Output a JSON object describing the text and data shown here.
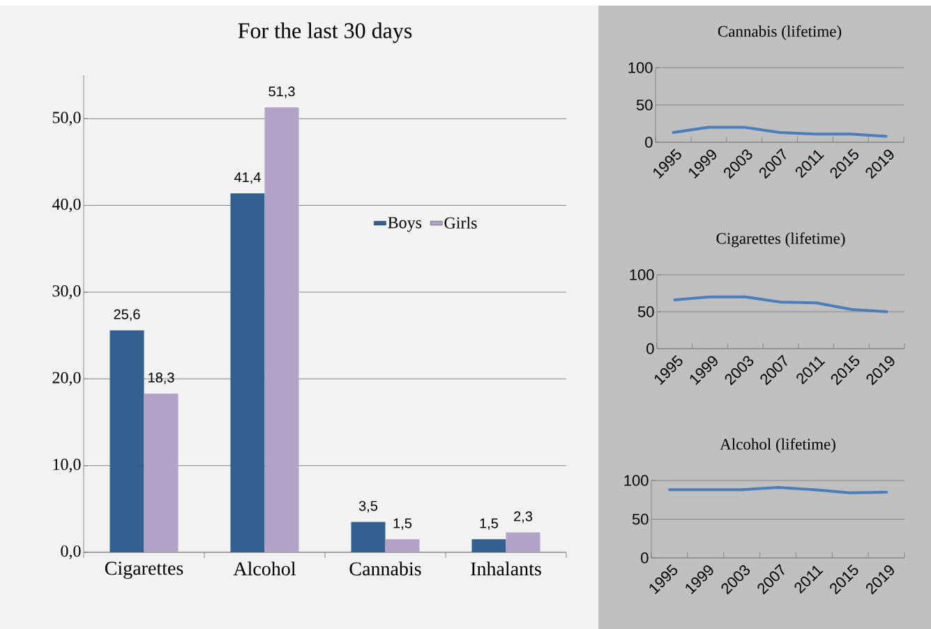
{
  "chart_data": [
    {
      "type": "bar",
      "title": "For the last 30 days",
      "categories": [
        "Cigarettes",
        "Alcohol",
        "Cannabis",
        "Inhalants"
      ],
      "series": [
        {
          "name": "Boys",
          "color": "#335f91",
          "values": [
            25.6,
            41.4,
            3.5,
            1.5
          ],
          "value_labels": [
            "25,6",
            "41,4",
            "3,5",
            "1,5"
          ]
        },
        {
          "name": "Girls",
          "color": "#b3a2c7",
          "values": [
            18.3,
            51.3,
            1.5,
            2.3
          ],
          "value_labels": [
            "18,3",
            "51,3",
            "1,5",
            "2,3"
          ]
        }
      ],
      "ylim": [
        0,
        55
      ],
      "yticks": [
        {
          "value": 0,
          "label": "0,0"
        },
        {
          "value": 10,
          "label": "10,0"
        },
        {
          "value": 20,
          "label": "20,0"
        },
        {
          "value": 30,
          "label": "30,0"
        },
        {
          "value": 40,
          "label": "40,0"
        },
        {
          "value": 50,
          "label": "50,0"
        }
      ],
      "grid": "y",
      "legend": "right"
    },
    {
      "type": "line",
      "title": "Cannabis (lifetime)",
      "categories": [
        "1995",
        "1999",
        "2003",
        "2007",
        "2011",
        "2015",
        "2019"
      ],
      "series": [
        {
          "color": "#4a7ebb",
          "values": [
            13,
            20,
            20,
            13,
            11,
            11,
            8
          ]
        }
      ],
      "ylim": [
        0,
        100
      ],
      "yticks": [
        0,
        50,
        100
      ],
      "grid": "y"
    },
    {
      "type": "line",
      "title": "Cigarettes  (lifetime)",
      "categories": [
        "1995",
        "1999",
        "2003",
        "2007",
        "2011",
        "2015",
        "2019"
      ],
      "series": [
        {
          "color": "#4a7ebb",
          "values": [
            66,
            70,
            70,
            63,
            62,
            53,
            50
          ]
        }
      ],
      "ylim": [
        0,
        100
      ],
      "yticks": [
        0,
        50,
        100
      ],
      "grid": "y"
    },
    {
      "type": "line",
      "title": "Alcohol (lifetime)",
      "categories": [
        "1995",
        "1999",
        "2003",
        "2007",
        "2011",
        "2015",
        "2019"
      ],
      "series": [
        {
          "color": "#4a7ebb",
          "values": [
            88,
            88,
            88,
            91,
            88,
            84,
            85
          ]
        }
      ],
      "ylim": [
        0,
        100
      ],
      "yticks": [
        0,
        50,
        100
      ],
      "grid": "y"
    }
  ]
}
